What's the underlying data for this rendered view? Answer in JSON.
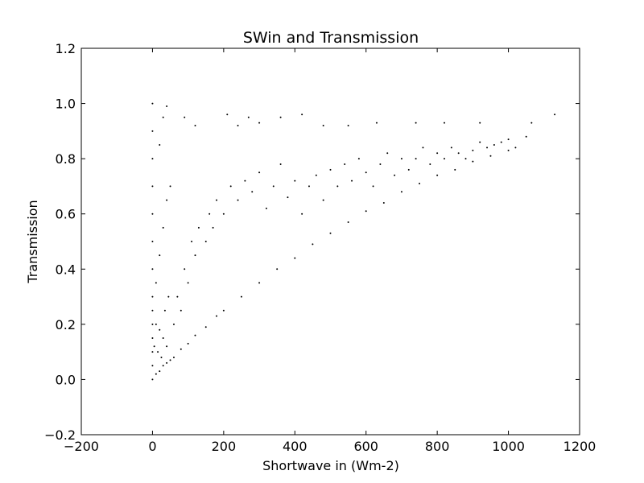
{
  "chart_data": {
    "type": "scatter",
    "title": "SWin and Transmission",
    "xlabel": "Shortwave in (Wm-2)",
    "ylabel": "Transmission",
    "xlim": [
      -200,
      1200
    ],
    "ylim": [
      -0.2,
      1.2
    ],
    "xticks": [
      -200,
      0,
      200,
      400,
      600,
      800,
      1000,
      1200
    ],
    "yticks": [
      -0.2,
      0.0,
      0.2,
      0.4,
      0.6,
      0.8,
      1.0,
      1.2
    ],
    "xtick_labels": [
      "−200",
      "0",
      "200",
      "400",
      "600",
      "800",
      "1000",
      "1200"
    ],
    "ytick_labels": [
      "−0.2",
      "0.0",
      "0.2",
      "0.4",
      "0.6",
      "0.8",
      "1.0",
      "1.2"
    ],
    "grid": false,
    "marker_color": "#000000",
    "series": [
      {
        "points": [
          [
            0,
            0.0
          ],
          [
            10,
            0.02
          ],
          [
            20,
            0.03
          ],
          [
            30,
            0.05
          ],
          [
            40,
            0.06
          ],
          [
            50,
            0.07
          ],
          [
            60,
            0.08
          ],
          [
            80,
            0.11
          ],
          [
            100,
            0.13
          ],
          [
            120,
            0.16
          ],
          [
            150,
            0.19
          ],
          [
            180,
            0.23
          ],
          [
            200,
            0.25
          ],
          [
            250,
            0.3
          ],
          [
            300,
            0.35
          ],
          [
            350,
            0.4
          ],
          [
            400,
            0.44
          ],
          [
            450,
            0.49
          ],
          [
            500,
            0.53
          ],
          [
            550,
            0.57
          ],
          [
            600,
            0.61
          ],
          [
            650,
            0.64
          ],
          [
            700,
            0.68
          ],
          [
            750,
            0.71
          ],
          [
            800,
            0.74
          ],
          [
            850,
            0.76
          ],
          [
            900,
            0.79
          ],
          [
            950,
            0.81
          ],
          [
            1000,
            0.83
          ],
          [
            1020,
            0.84
          ],
          [
            0,
            0.05
          ],
          [
            0,
            0.1
          ],
          [
            0,
            0.15
          ],
          [
            0,
            0.2
          ],
          [
            0,
            0.25
          ],
          [
            0,
            0.3
          ],
          [
            0,
            0.4
          ],
          [
            0,
            0.5
          ],
          [
            0,
            0.6
          ],
          [
            0,
            0.7
          ],
          [
            0,
            0.8
          ],
          [
            0,
            0.9
          ],
          [
            0,
            1.0
          ],
          [
            5,
            0.12
          ],
          [
            10,
            0.2
          ],
          [
            15,
            0.1
          ],
          [
            20,
            0.18
          ],
          [
            25,
            0.08
          ],
          [
            30,
            0.15
          ],
          [
            35,
            0.25
          ],
          [
            40,
            0.12
          ],
          [
            45,
            0.3
          ],
          [
            10,
            0.35
          ],
          [
            20,
            0.45
          ],
          [
            30,
            0.55
          ],
          [
            40,
            0.65
          ],
          [
            50,
            0.7
          ],
          [
            20,
            0.85
          ],
          [
            30,
            0.95
          ],
          [
            40,
            0.99
          ],
          [
            60,
            0.2
          ],
          [
            70,
            0.3
          ],
          [
            80,
            0.25
          ],
          [
            90,
            0.4
          ],
          [
            100,
            0.35
          ],
          [
            110,
            0.5
          ],
          [
            120,
            0.45
          ],
          [
            130,
            0.55
          ],
          [
            150,
            0.5
          ],
          [
            160,
            0.6
          ],
          [
            170,
            0.55
          ],
          [
            180,
            0.65
          ],
          [
            200,
            0.6
          ],
          [
            220,
            0.7
          ],
          [
            240,
            0.65
          ],
          [
            260,
            0.72
          ],
          [
            280,
            0.68
          ],
          [
            300,
            0.75
          ],
          [
            320,
            0.62
          ],
          [
            340,
            0.7
          ],
          [
            360,
            0.78
          ],
          [
            380,
            0.66
          ],
          [
            400,
            0.72
          ],
          [
            420,
            0.6
          ],
          [
            440,
            0.7
          ],
          [
            460,
            0.74
          ],
          [
            480,
            0.65
          ],
          [
            500,
            0.76
          ],
          [
            520,
            0.7
          ],
          [
            540,
            0.78
          ],
          [
            560,
            0.72
          ],
          [
            580,
            0.8
          ],
          [
            600,
            0.75
          ],
          [
            620,
            0.7
          ],
          [
            640,
            0.78
          ],
          [
            660,
            0.82
          ],
          [
            680,
            0.74
          ],
          [
            700,
            0.8
          ],
          [
            720,
            0.76
          ],
          [
            740,
            0.8
          ],
          [
            760,
            0.84
          ],
          [
            780,
            0.78
          ],
          [
            800,
            0.82
          ],
          [
            820,
            0.8
          ],
          [
            840,
            0.84
          ],
          [
            860,
            0.82
          ],
          [
            880,
            0.8
          ],
          [
            900,
            0.83
          ],
          [
            920,
            0.86
          ],
          [
            940,
            0.84
          ],
          [
            960,
            0.85
          ],
          [
            980,
            0.86
          ],
          [
            1000,
            0.87
          ],
          [
            1050,
            0.88
          ],
          [
            1065,
            0.93
          ],
          [
            1130,
            0.96
          ],
          [
            920,
            0.93
          ],
          [
            820,
            0.93
          ],
          [
            740,
            0.93
          ],
          [
            630,
            0.93
          ],
          [
            550,
            0.92
          ],
          [
            480,
            0.92
          ],
          [
            420,
            0.96
          ],
          [
            360,
            0.95
          ],
          [
            300,
            0.93
          ],
          [
            270,
            0.95
          ],
          [
            210,
            0.96
          ],
          [
            240,
            0.92
          ],
          [
            120,
            0.92
          ],
          [
            90,
            0.95
          ]
        ]
      }
    ]
  }
}
